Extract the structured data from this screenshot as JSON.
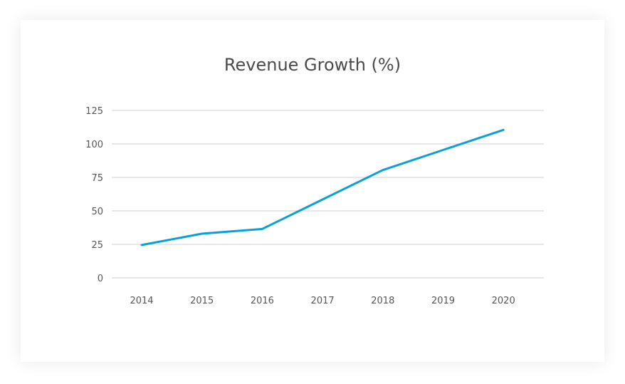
{
  "chart_data": {
    "type": "line",
    "title": "Revenue Growth (%)",
    "xlabel": "",
    "ylabel": "",
    "categories": [
      "2014",
      "2015",
      "2016",
      "2017",
      "2018",
      "2019",
      "2020"
    ],
    "series": [
      {
        "values": [
          24.5,
          33,
          36.5,
          58.5,
          80.5,
          95.5,
          110.5
        ],
        "color": "#0aa0d8"
      }
    ],
    "y_ticks": [
      0,
      25,
      50,
      75,
      100,
      125
    ],
    "ylim": [
      0,
      125
    ],
    "grid": true,
    "legend": "none"
  }
}
